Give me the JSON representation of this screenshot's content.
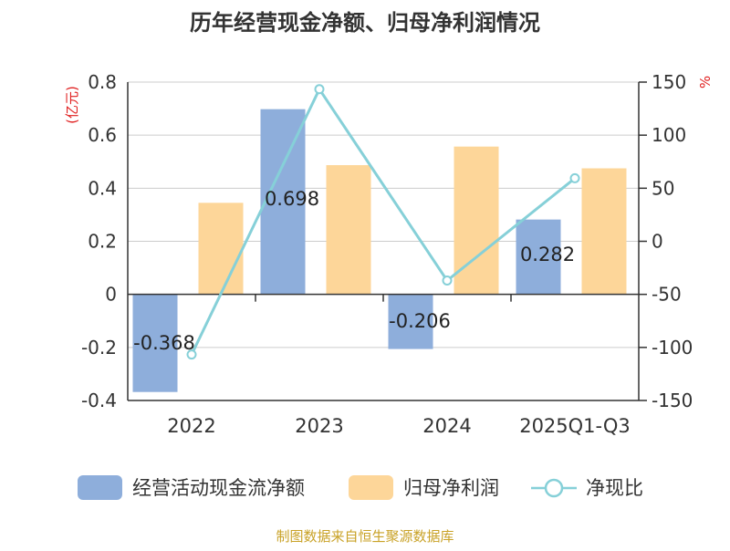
{
  "chart_data": {
    "type": "bar+line",
    "title": "历年经营现金净额、归母净利润情况",
    "categories": [
      "2022",
      "2023",
      "2024",
      "2025Q1-Q3"
    ],
    "series": [
      {
        "name": "经营活动现金流净额",
        "kind": "bar",
        "axis": "left",
        "color": "#8eaedb",
        "values": [
          -0.368,
          0.698,
          -0.206,
          0.282
        ],
        "labels": [
          "-0.368",
          "0.698",
          "-0.206",
          "0.282"
        ]
      },
      {
        "name": "归母净利润",
        "kind": "bar",
        "axis": "left",
        "color": "#fdd699",
        "values": [
          0.345,
          0.487,
          0.557,
          0.475
        ]
      },
      {
        "name": "净现比",
        "kind": "line",
        "axis": "right",
        "color": "#86d0d8",
        "values": [
          -106.7,
          143.3,
          -37.0,
          59.4
        ]
      }
    ],
    "left_axis": {
      "label": "(亿元)",
      "min": -0.4,
      "max": 0.8,
      "ticks": [
        -0.4,
        -0.2,
        0,
        0.2,
        0.4,
        0.6,
        0.8
      ],
      "tick_labels": [
        "-0.4",
        "-0.2",
        "0",
        "0.2",
        "0.4",
        "0.6",
        "0.8"
      ]
    },
    "right_axis": {
      "label": "%",
      "min": -150,
      "max": 150,
      "ticks": [
        -150,
        -100,
        -50,
        0,
        50,
        100,
        150
      ],
      "tick_labels": [
        "-150",
        "-100",
        "-50",
        "0",
        "50",
        "100",
        "150"
      ]
    },
    "grid": true,
    "legend_position": "bottom",
    "source": "制图数据来自恒生聚源数据库"
  },
  "colors": {
    "grid": "#cccccc",
    "axis": "#333333",
    "text": "#333333",
    "unit_label": "#e02020",
    "source": "#c9a227"
  }
}
